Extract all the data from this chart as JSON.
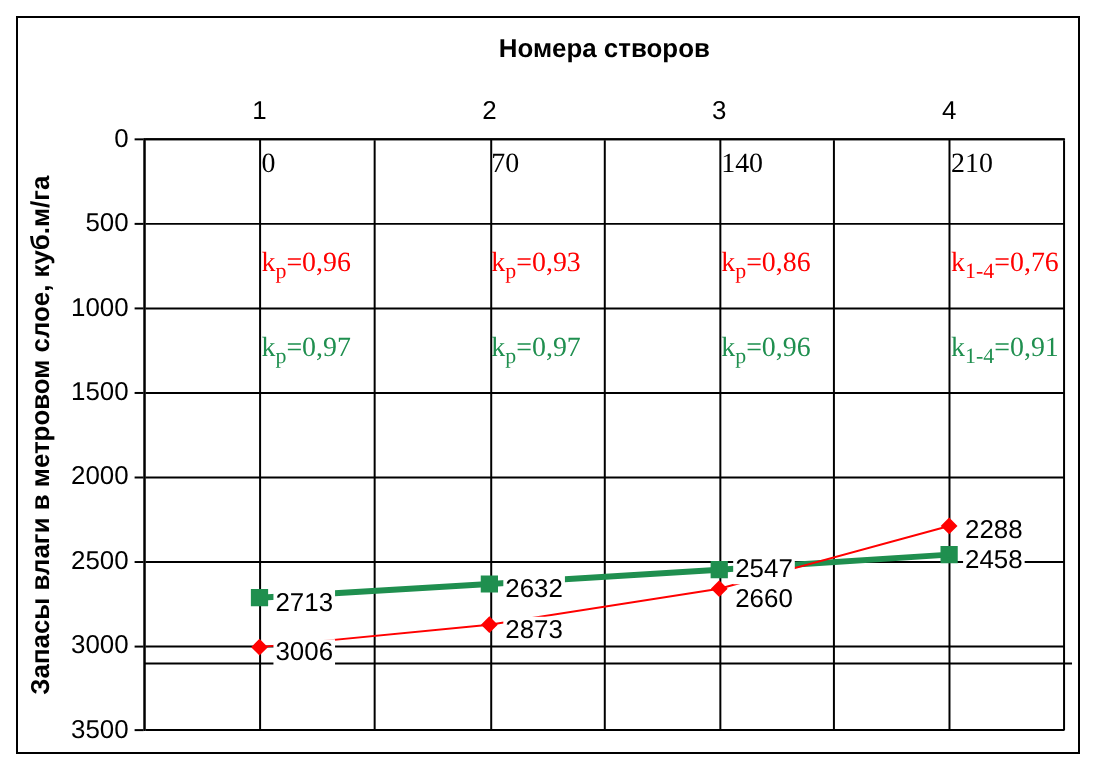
{
  "chart_data": {
    "type": "line",
    "xlabel": "Номера створов",
    "ylabel": "Запасы влаги в метровом слое, куб.м/га",
    "categories": [
      "1",
      "2",
      "3",
      "4"
    ],
    "series": [
      {
        "color": "#ff0000",
        "marker": "diamond",
        "values": [
          3006,
          2873,
          2660,
          2288
        ]
      },
      {
        "color": "#1f8f4f",
        "marker": "square",
        "values": [
          2713,
          2632,
          2547,
          2458
        ]
      }
    ],
    "ylim": [
      3500,
      0
    ],
    "yticks": [
      0,
      500,
      1000,
      1500,
      2000,
      2500,
      3000,
      3500
    ],
    "grid": true,
    "data_labels": true,
    "legend": false,
    "ref_lines": [
      {
        "axis": "y",
        "value": 3100,
        "color": "#000000"
      }
    ],
    "annotations": [
      "0",
      "70",
      "140",
      "210",
      "k$_{p}$=0,96",
      "k$_{p}$=0,93",
      "k$_{p}$=0,86",
      "k$_{1-4}$=0,76",
      "k$_{p}$=0,97",
      "k$_{p}$=0,97",
      "k$_{p}$=0,96",
      "k$_{1-4}$=0,91"
    ]
  }
}
